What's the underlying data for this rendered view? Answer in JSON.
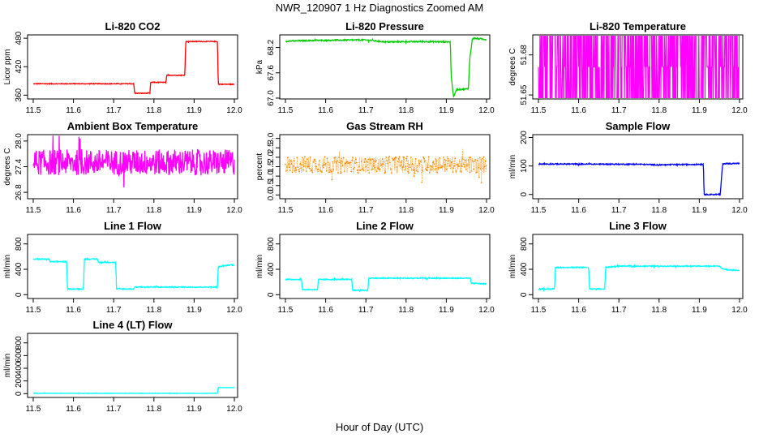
{
  "figure": {
    "title": "NWR_120907  1 Hz Diagnostics Zoomed AM",
    "xlabel": "Hour of Day (UTC)"
  },
  "chart_data": [
    {
      "type": "line",
      "title": "Li-820 CO2",
      "ylabel": "Licor ppm",
      "color": "#ff0000",
      "xticks": [
        "11.5",
        "11.6",
        "11.7",
        "11.8",
        "11.9",
        "12.0"
      ],
      "yticks": [
        {
          "v": 360,
          "label": "360"
        },
        {
          "v": 420,
          "label": "420"
        },
        {
          "v": 480,
          "label": "480"
        }
      ],
      "xlim": [
        11.5,
        12.0
      ],
      "ylim": [
        352,
        487
      ],
      "noise": 0.8,
      "series": [
        {
          "x": [
            11.5,
            11.75,
            11.752,
            11.79,
            11.792,
            11.83,
            11.832,
            11.877,
            11.879,
            11.958,
            11.96,
            12.0
          ],
          "y": [
            384,
            384,
            364,
            364,
            387,
            387,
            402,
            402,
            473,
            473,
            383,
            383
          ]
        }
      ]
    },
    {
      "type": "line",
      "title": "Li-820 Pressure",
      "ylabel": "kPa",
      "color": "#00cc00",
      "xticks": [
        "11.5",
        "11.6",
        "11.7",
        "11.8",
        "11.9",
        "12.0"
      ],
      "yticks": [
        {
          "v": 67.0,
          "label": "67.0"
        },
        {
          "v": 67.6,
          "label": "67.6"
        },
        {
          "v": 68.2,
          "label": "68.2"
        }
      ],
      "xlim": [
        11.5,
        12.0
      ],
      "ylim": [
        66.98,
        68.5
      ],
      "noise": 0.015,
      "series": [
        {
          "x": [
            11.5,
            11.58,
            11.7,
            11.75,
            11.8,
            11.86,
            11.91,
            11.912,
            11.918,
            11.925,
            11.955,
            11.958,
            11.965,
            12.0
          ],
          "y": [
            68.35,
            68.37,
            68.38,
            68.33,
            68.34,
            68.34,
            68.33,
            67.55,
            67.02,
            67.2,
            67.22,
            67.9,
            68.42,
            68.39
          ]
        }
      ]
    },
    {
      "type": "line",
      "title": "Li-820 Temperature",
      "ylabel": "degrees C",
      "color": "#ff00ff",
      "xticks": [
        "11.5",
        "11.6",
        "11.7",
        "11.8",
        "11.9",
        "12.0"
      ],
      "yticks": [
        {
          "v": 51.65,
          "label": "51.65"
        },
        {
          "v": 51.68,
          "label": "51.68"
        }
      ],
      "xlim": [
        11.5,
        12.0
      ],
      "ylim": [
        51.647,
        51.695
      ],
      "series": [
        {
          "x": [
            11.5,
            12.0
          ],
          "y": [
            51.671,
            51.671
          ]
        }
      ],
      "band": {
        "values": [
          51.647,
          51.671,
          51.695
        ]
      }
    },
    {
      "type": "line",
      "title": "Ambient Box Temperature",
      "ylabel": "degrees C",
      "color": "#ff00ff",
      "xticks": [
        "11.5",
        "11.6",
        "11.7",
        "11.8",
        "11.9",
        "12.0"
      ],
      "yticks": [
        {
          "v": 26.8,
          "label": "26.8"
        },
        {
          "v": 27.4,
          "label": "27.4"
        },
        {
          "v": 28.0,
          "label": "28.0"
        }
      ],
      "xlim": [
        11.5,
        12.0
      ],
      "ylim": [
        26.65,
        28.15
      ],
      "noise": 0.3,
      "series": [
        {
          "x": [
            11.5,
            12.0
          ],
          "y": [
            27.5,
            27.5
          ]
        }
      ]
    },
    {
      "type": "scatter",
      "title": "Gas Stream RH",
      "ylabel": "percent",
      "color": "#ff8c00",
      "xticks": [
        "11.5",
        "11.6",
        "11.7",
        "11.8",
        "11.9",
        "12.0"
      ],
      "yticks": [
        {
          "v": 0.0,
          "label": "0.0"
        },
        {
          "v": 0.5,
          "label": "0.5"
        },
        {
          "v": 1.0,
          "label": "1.0"
        },
        {
          "v": 1.5,
          "label": "1.5"
        },
        {
          "v": 2.0,
          "label": "2.0"
        },
        {
          "v": 2.5,
          "label": "2.5"
        },
        {
          "v": 3.0,
          "label": "3.0"
        }
      ],
      "xlim": [
        11.5,
        12.0
      ],
      "ylim": [
        -0.2,
        3.2
      ],
      "noise": 0.45,
      "series": [
        {
          "x": [
            11.5,
            12.0
          ],
          "y": [
            1.6,
            1.6
          ]
        }
      ]
    },
    {
      "type": "line",
      "title": "Sample Flow",
      "ylabel": "ml/min",
      "color": "#0000ff",
      "xticks": [
        "11.5",
        "11.6",
        "11.7",
        "11.8",
        "11.9",
        "12.0"
      ],
      "yticks": [
        {
          "v": 0,
          "label": "0"
        },
        {
          "v": 100,
          "label": "100"
        },
        {
          "v": 200,
          "label": "200"
        }
      ],
      "xlim": [
        11.5,
        12.0
      ],
      "ylim": [
        -15,
        210
      ],
      "noise": 2,
      "series": [
        {
          "x": [
            11.5,
            11.75,
            11.8,
            11.91,
            11.912,
            11.95,
            11.952,
            11.958,
            11.96,
            12.0
          ],
          "y": [
            107,
            106,
            104,
            106,
            0,
            0,
            0,
            108,
            108,
            109
          ]
        }
      ]
    },
    {
      "type": "line",
      "title": "Line 1 Flow",
      "ylabel": "ml/min",
      "color": "#00ffff",
      "xticks": [
        "11.5",
        "11.6",
        "11.7",
        "11.8",
        "11.9",
        "12.0"
      ],
      "yticks": [
        {
          "v": 0,
          "label": "0"
        },
        {
          "v": 400,
          "label": "400"
        },
        {
          "v": 800,
          "label": "800"
        }
      ],
      "xlim": [
        11.5,
        12.0
      ],
      "ylim": [
        -60,
        950
      ],
      "noise": 8,
      "series": [
        {
          "x": [
            11.5,
            11.54,
            11.542,
            11.583,
            11.585,
            11.625,
            11.627,
            11.66,
            11.662,
            11.705,
            11.707,
            11.75,
            11.752,
            11.958,
            11.96,
            11.99,
            12.0
          ],
          "y": [
            560,
            560,
            520,
            520,
            90,
            90,
            560,
            560,
            510,
            510,
            90,
            90,
            120,
            120,
            440,
            470,
            470
          ]
        }
      ]
    },
    {
      "type": "line",
      "title": "Line 2 Flow",
      "ylabel": "ml/min",
      "color": "#00ffff",
      "xticks": [
        "11.5",
        "11.6",
        "11.7",
        "11.8",
        "11.9",
        "12.0"
      ],
      "yticks": [
        {
          "v": 0,
          "label": "0"
        },
        {
          "v": 400,
          "label": "400"
        },
        {
          "v": 800,
          "label": "800"
        }
      ],
      "xlim": [
        11.5,
        12.0
      ],
      "ylim": [
        -60,
        950
      ],
      "noise": 8,
      "series": [
        {
          "x": [
            11.5,
            11.54,
            11.542,
            11.58,
            11.582,
            11.62,
            11.625,
            11.665,
            11.667,
            11.705,
            11.707,
            11.96,
            11.962,
            12.0
          ],
          "y": [
            240,
            240,
            80,
            80,
            240,
            240,
            240,
            240,
            70,
            70,
            260,
            260,
            180,
            170
          ]
        }
      ]
    },
    {
      "type": "line",
      "title": "Line 3 Flow",
      "ylabel": "ml/min",
      "color": "#00ffff",
      "xticks": [
        "11.5",
        "11.6",
        "11.7",
        "11.8",
        "11.9",
        "12.0"
      ],
      "yticks": [
        {
          "v": 0,
          "label": "0"
        },
        {
          "v": 400,
          "label": "400"
        },
        {
          "v": 800,
          "label": "800"
        }
      ],
      "xlim": [
        11.5,
        12.0
      ],
      "ylim": [
        -60,
        950
      ],
      "noise": 8,
      "series": [
        {
          "x": [
            11.5,
            11.54,
            11.542,
            11.625,
            11.627,
            11.665,
            11.667,
            11.7,
            11.95,
            11.96,
            12.0
          ],
          "y": [
            90,
            90,
            430,
            430,
            90,
            90,
            430,
            450,
            450,
            400,
            380
          ]
        }
      ]
    },
    {
      "type": "line",
      "title": "Line 4 (LT) Flow",
      "ylabel": "ml/min",
      "color": "#00ffff",
      "xticks": [
        "11.5",
        "11.6",
        "11.7",
        "11.8",
        "11.9",
        "12.0"
      ],
      "yticks": [
        {
          "v": 0,
          "label": "0"
        },
        {
          "v": 200,
          "label": "200"
        },
        {
          "v": 400,
          "label": "400"
        },
        {
          "v": 600,
          "label": "600"
        },
        {
          "v": 800,
          "label": "800"
        }
      ],
      "xlim": [
        11.5,
        12.0
      ],
      "ylim": [
        -60,
        950
      ],
      "noise": 3,
      "series": [
        {
          "x": [
            11.5,
            11.958,
            11.96,
            12.0
          ],
          "y": [
            5,
            5,
            95,
            95
          ]
        }
      ]
    }
  ]
}
